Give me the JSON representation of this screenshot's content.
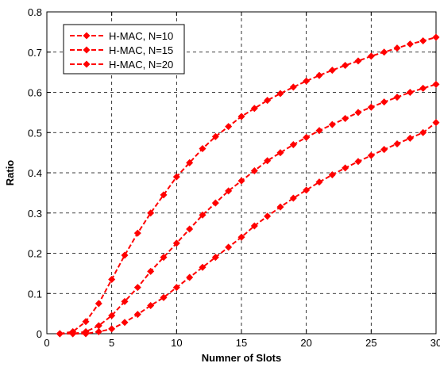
{
  "chart_data": {
    "type": "line",
    "xlabel": "Numner of Slots",
    "ylabel": "Ratio",
    "xlim": [
      0,
      30
    ],
    "ylim": [
      0,
      0.8
    ],
    "xticks": [
      0,
      5,
      10,
      15,
      20,
      25,
      30
    ],
    "yticks": [
      0,
      0.1,
      0.2,
      0.3,
      0.4,
      0.5,
      0.6,
      0.7,
      0.8
    ],
    "grid": true,
    "legend_position": "top-left",
    "line_color": "#ff0000",
    "x": [
      1,
      2,
      3,
      4,
      5,
      6,
      7,
      8,
      9,
      10,
      11,
      12,
      13,
      14,
      15,
      16,
      17,
      18,
      19,
      20,
      21,
      22,
      23,
      24,
      25,
      26,
      27,
      28,
      29,
      30
    ],
    "series": [
      {
        "name": "H-MAC, N=10",
        "values": [
          0.0,
          0.005,
          0.03,
          0.075,
          0.135,
          0.195,
          0.25,
          0.3,
          0.345,
          0.39,
          0.425,
          0.46,
          0.49,
          0.515,
          0.54,
          0.56,
          0.58,
          0.597,
          0.613,
          0.628,
          0.642,
          0.655,
          0.667,
          0.678,
          0.69,
          0.7,
          0.71,
          0.72,
          0.728,
          0.737
        ]
      },
      {
        "name": "H-MAC, N=15",
        "values": [
          0.0,
          0.0,
          0.005,
          0.02,
          0.045,
          0.08,
          0.115,
          0.155,
          0.19,
          0.225,
          0.26,
          0.295,
          0.325,
          0.355,
          0.38,
          0.405,
          0.43,
          0.45,
          0.47,
          0.488,
          0.505,
          0.52,
          0.535,
          0.55,
          0.563,
          0.576,
          0.588,
          0.6,
          0.61,
          0.62
        ]
      },
      {
        "name": "H-MAC, N=20",
        "values": [
          0.0,
          0.0,
          0.0,
          0.005,
          0.012,
          0.028,
          0.048,
          0.07,
          0.09,
          0.115,
          0.14,
          0.165,
          0.19,
          0.215,
          0.24,
          0.268,
          0.292,
          0.315,
          0.337,
          0.357,
          0.377,
          0.395,
          0.412,
          0.428,
          0.443,
          0.458,
          0.472,
          0.486,
          0.5,
          0.525
        ]
      }
    ]
  }
}
